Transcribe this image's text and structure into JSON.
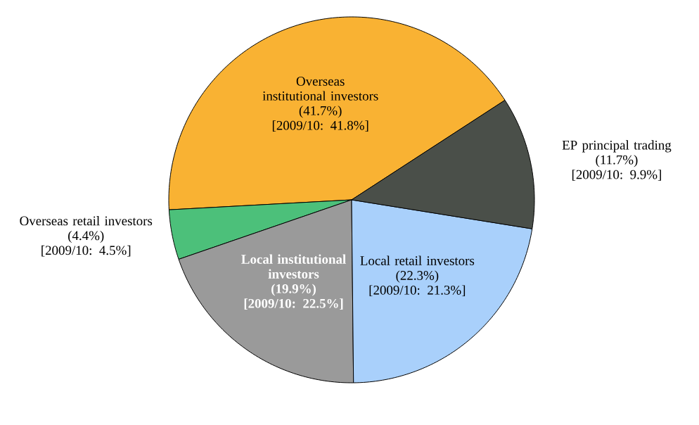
{
  "chart_data": {
    "type": "pie",
    "categories": [
      "Overseas institutional investors",
      "Overseas retail investors",
      "Local institutional investors",
      "Local retail investors",
      "EP principal trading"
    ],
    "values": [
      41.7,
      4.4,
      19.9,
      22.3,
      11.7
    ],
    "colors": [
      "#f9b233",
      "#4cc07a",
      "#9a9a9a",
      "#a9d0fb",
      "#4a4f49"
    ],
    "value_labels": [
      "(41.7%)",
      "(4.4%)",
      "(19.9%)",
      "(22.3%)",
      "(11.7%)"
    ],
    "annotations": [
      "[2009/10:  41.8%]",
      "[2009/10:  4.5%]",
      "[2009/10:  22.5%]",
      "[2009/10:  21.3%]",
      "[2009/10:  9.9%]"
    ]
  }
}
